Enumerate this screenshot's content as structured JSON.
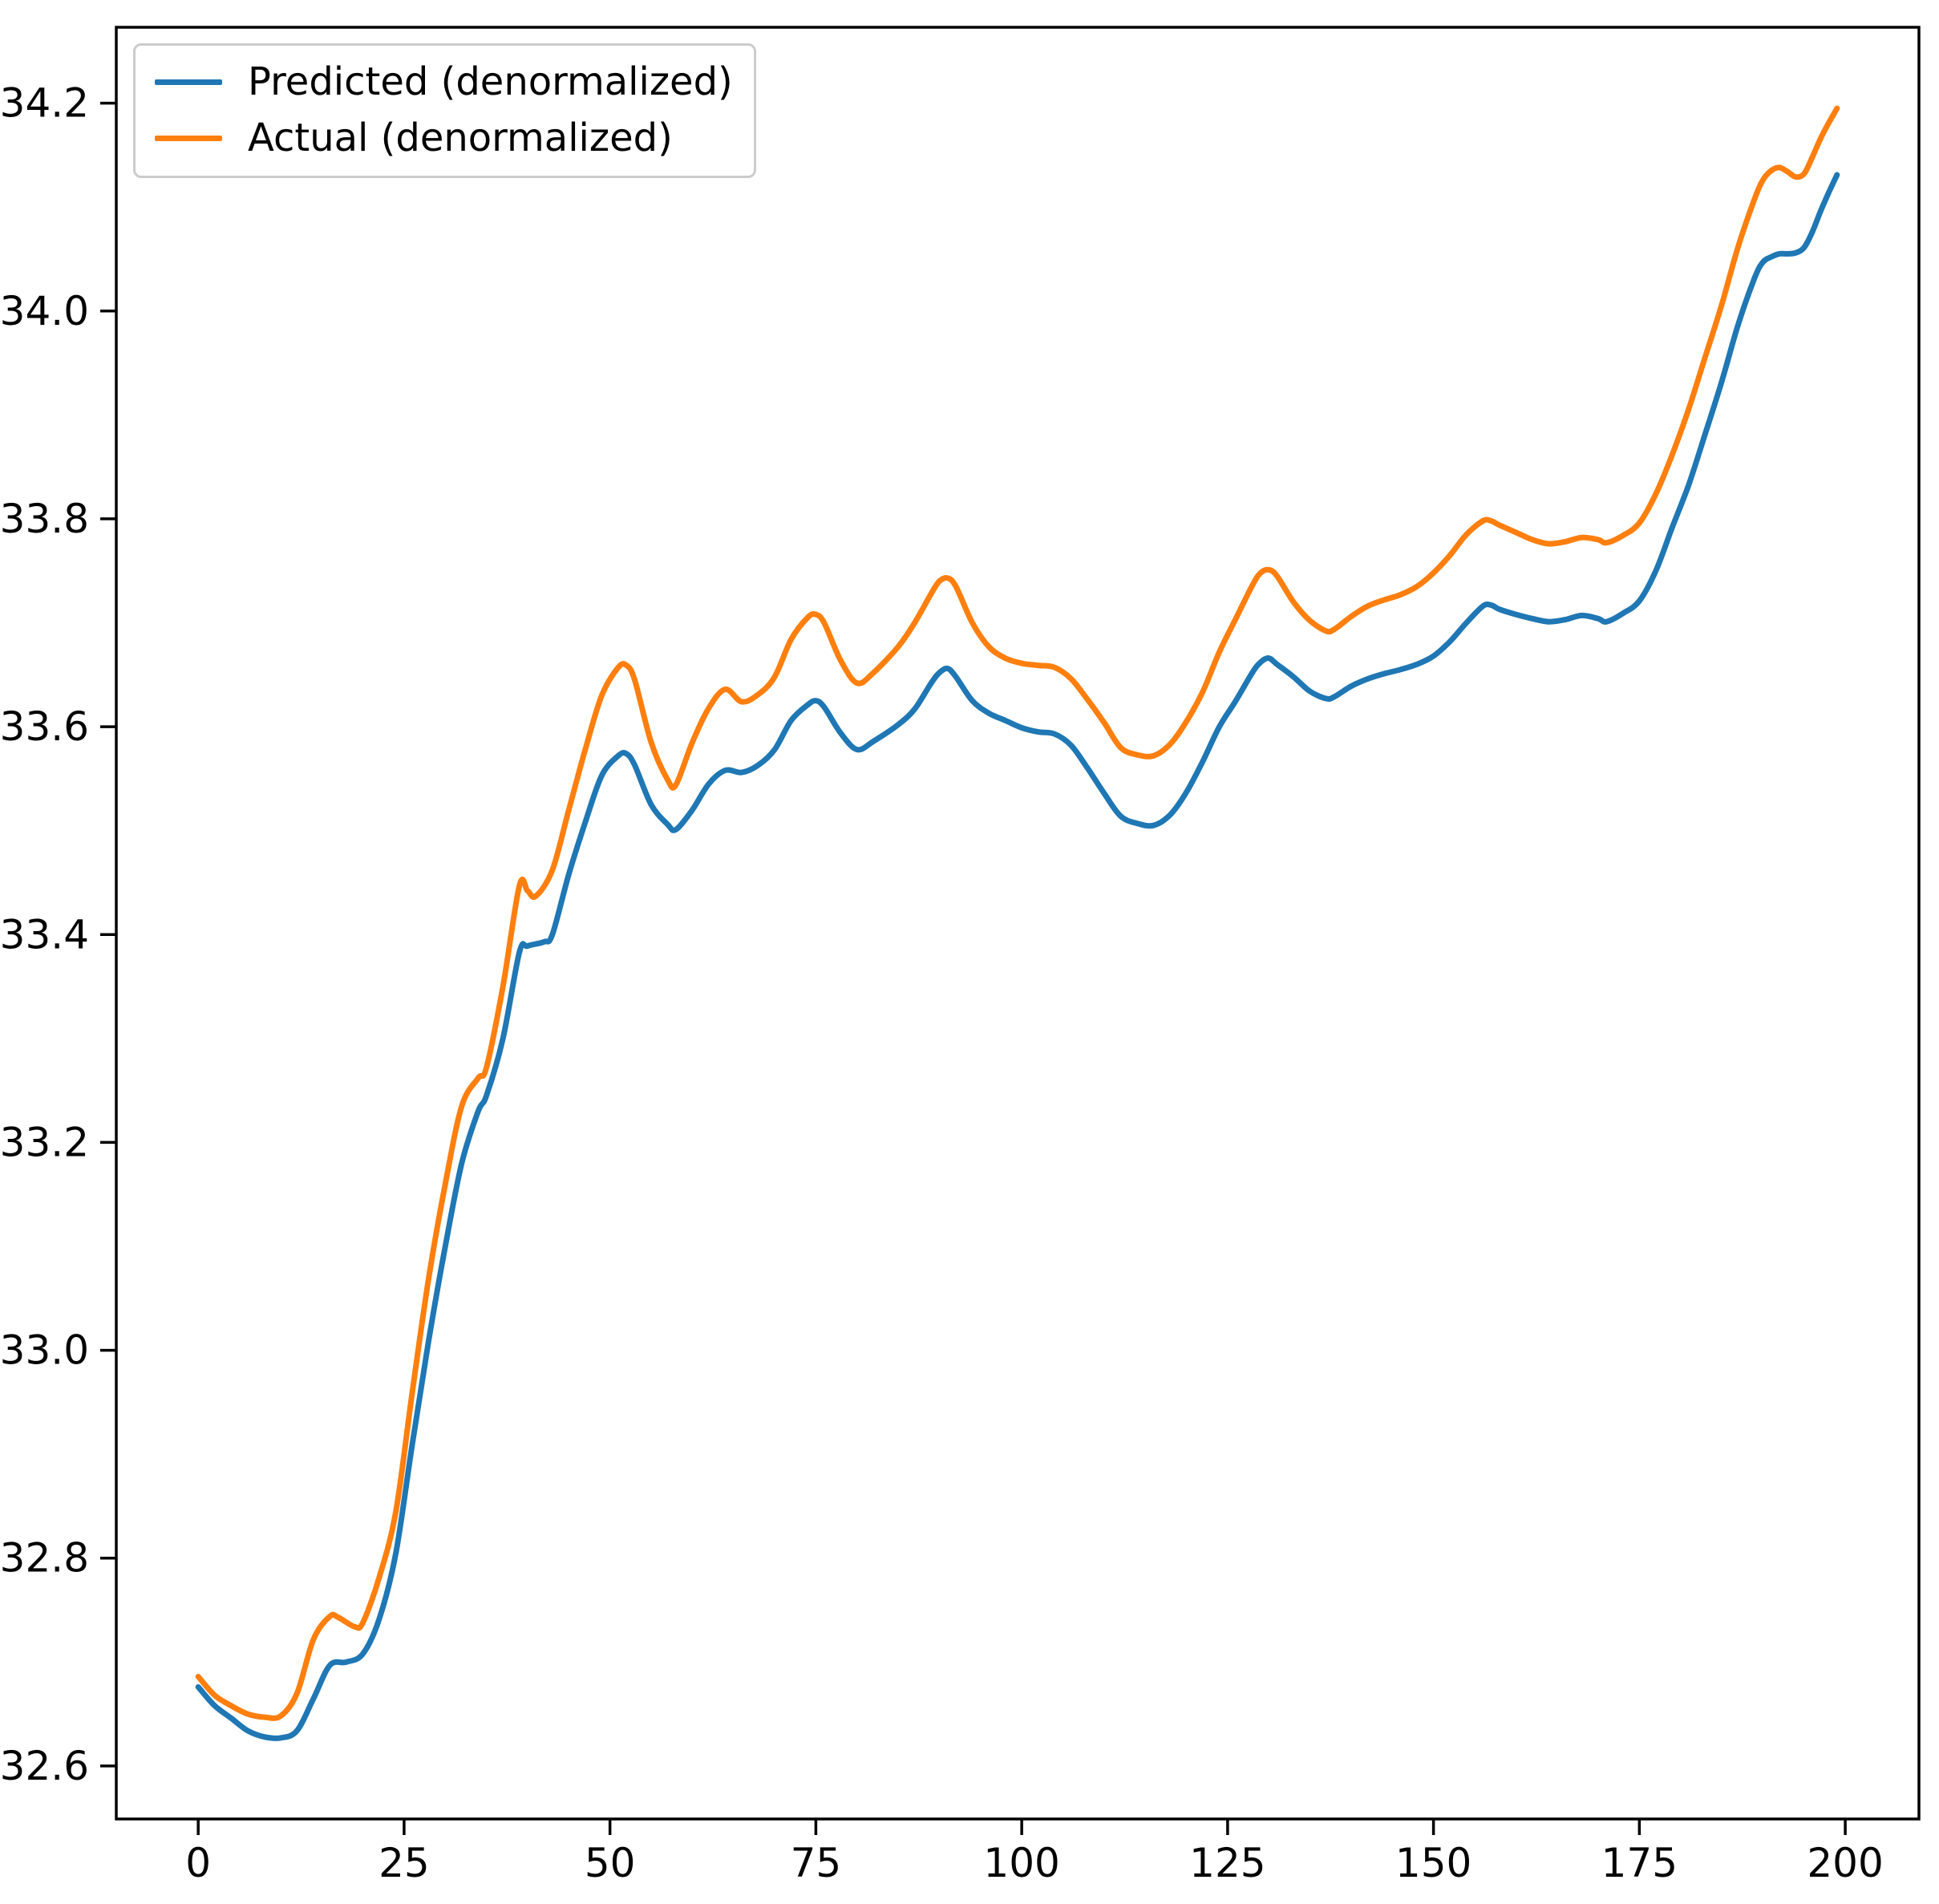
{
  "figure": {
    "background": "#ffffff",
    "axes_color": "#000000"
  },
  "chart_data": {
    "type": "line",
    "title": "",
    "xlabel": "",
    "ylabel": "",
    "grid": false,
    "xlim": [
      -9.95,
      208.95
    ],
    "ylim": [
      32.549,
      34.273
    ],
    "legend": {
      "position": "upper-left",
      "border_color": "#cccccc",
      "background": "#ffffff",
      "entries": [
        "Predicted (denormalized)",
        "Actual (denormalized)"
      ]
    },
    "xticks": {
      "values": [
        0,
        25,
        50,
        75,
        100,
        125,
        150,
        175,
        200
      ],
      "labels": [
        "0",
        "25",
        "50",
        "75",
        "100",
        "125",
        "150",
        "175",
        "200"
      ]
    },
    "yticks": {
      "values": [
        32.6,
        32.8,
        33.0,
        33.2,
        33.4,
        33.6,
        33.8,
        34.0,
        34.2
      ],
      "labels": [
        "32.6",
        "32.8",
        "33.0",
        "33.2",
        "33.4",
        "33.6",
        "33.8",
        "34.0",
        "34.2"
      ]
    },
    "series": [
      {
        "name": "Predicted (denormalized)",
        "id": "predicted",
        "color": "#1f77b4",
        "points": [
          [
            0,
            32.676
          ],
          [
            2,
            32.658
          ],
          [
            4,
            32.646
          ],
          [
            6,
            32.634
          ],
          [
            8,
            32.628
          ],
          [
            10,
            32.627
          ],
          [
            12,
            32.634
          ],
          [
            14,
            32.665
          ],
          [
            16,
            32.697
          ],
          [
            18,
            32.7
          ],
          [
            20,
            32.708
          ],
          [
            22,
            32.742
          ],
          [
            24,
            32.805
          ],
          [
            26,
            32.91
          ],
          [
            28,
            33.01
          ],
          [
            30,
            33.1
          ],
          [
            32,
            33.18
          ],
          [
            34,
            33.23
          ],
          [
            35,
            33.245
          ],
          [
            37,
            33.3
          ],
          [
            39,
            33.383
          ],
          [
            40,
            33.389
          ],
          [
            42,
            33.393
          ],
          [
            43,
            33.4
          ],
          [
            45,
            33.458
          ],
          [
            47,
            33.508
          ],
          [
            49,
            33.553
          ],
          [
            51,
            33.572
          ],
          [
            52,
            33.574
          ],
          [
            53,
            33.563
          ],
          [
            55,
            33.525
          ],
          [
            57,
            33.506
          ],
          [
            58,
            33.501
          ],
          [
            60,
            33.52
          ],
          [
            62,
            33.545
          ],
          [
            64,
            33.558
          ],
          [
            66,
            33.556
          ],
          [
            68,
            33.563
          ],
          [
            70,
            33.578
          ],
          [
            72,
            33.606
          ],
          [
            74,
            33.621
          ],
          [
            75,
            33.625
          ],
          [
            76,
            33.619
          ],
          [
            78,
            33.594
          ],
          [
            80,
            33.578
          ],
          [
            82,
            33.586
          ],
          [
            85,
            33.602
          ],
          [
            87,
            33.617
          ],
          [
            89,
            33.642
          ],
          [
            90,
            33.652
          ],
          [
            91,
            33.656
          ],
          [
            92,
            33.648
          ],
          [
            94,
            33.625
          ],
          [
            96,
            33.613
          ],
          [
            98,
            33.606
          ],
          [
            100,
            33.599
          ],
          [
            102,
            33.595
          ],
          [
            104,
            33.593
          ],
          [
            106,
            33.582
          ],
          [
            108,
            33.56
          ],
          [
            110,
            33.536
          ],
          [
            112,
            33.514
          ],
          [
            114,
            33.507
          ],
          [
            116,
            33.505
          ],
          [
            118,
            33.515
          ],
          [
            120,
            33.537
          ],
          [
            122,
            33.567
          ],
          [
            124,
            33.6
          ],
          [
            126,
            33.625
          ],
          [
            128,
            33.652
          ],
          [
            129,
            33.662
          ],
          [
            130,
            33.666
          ],
          [
            131,
            33.66
          ],
          [
            133,
            33.648
          ],
          [
            135,
            33.634
          ],
          [
            137,
            33.627
          ],
          [
            138,
            33.629
          ],
          [
            140,
            33.639
          ],
          [
            142,
            33.646
          ],
          [
            144,
            33.651
          ],
          [
            146,
            33.655
          ],
          [
            148,
            33.66
          ],
          [
            150,
            33.668
          ],
          [
            152,
            33.682
          ],
          [
            154,
            33.7
          ],
          [
            156,
            33.716
          ],
          [
            157,
            33.717
          ],
          [
            158,
            33.713
          ],
          [
            160,
            33.708
          ],
          [
            162,
            33.704
          ],
          [
            164,
            33.701
          ],
          [
            166,
            33.703
          ],
          [
            168,
            33.707
          ],
          [
            170,
            33.704
          ],
          [
            171,
            33.701
          ],
          [
            173,
            33.709
          ],
          [
            175,
            33.721
          ],
          [
            177,
            33.75
          ],
          [
            179,
            33.792
          ],
          [
            181,
            33.833
          ],
          [
            183,
            33.882
          ],
          [
            185,
            33.932
          ],
          [
            187,
            33.987
          ],
          [
            189,
            34.032
          ],
          [
            190,
            34.047
          ],
          [
            191,
            34.052
          ],
          [
            192,
            34.055
          ],
          [
            193,
            34.055
          ],
          [
            194,
            34.056
          ],
          [
            195,
            34.061
          ],
          [
            196,
            34.076
          ],
          [
            197,
            34.096
          ],
          [
            198,
            34.114
          ],
          [
            199,
            34.131
          ]
        ]
      },
      {
        "name": "Actual (denormalized)",
        "id": "actual",
        "color": "#ff7f0e",
        "points": [
          [
            0,
            32.686
          ],
          [
            2,
            32.668
          ],
          [
            4,
            32.658
          ],
          [
            6,
            32.65
          ],
          [
            8,
            32.647
          ],
          [
            10,
            32.648
          ],
          [
            12,
            32.67
          ],
          [
            14,
            32.722
          ],
          [
            16,
            32.744
          ],
          [
            17,
            32.743
          ],
          [
            19,
            32.734
          ],
          [
            20,
            32.738
          ],
          [
            22,
            32.782
          ],
          [
            24,
            32.845
          ],
          [
            26,
            32.96
          ],
          [
            28,
            33.07
          ],
          [
            30,
            33.16
          ],
          [
            32,
            33.235
          ],
          [
            34,
            33.262
          ],
          [
            35,
            33.272
          ],
          [
            37,
            33.35
          ],
          [
            39,
            33.447
          ],
          [
            40,
            33.442
          ],
          [
            41,
            33.437
          ],
          [
            43,
            33.462
          ],
          [
            45,
            33.52
          ],
          [
            47,
            33.578
          ],
          [
            49,
            33.63
          ],
          [
            51,
            33.657
          ],
          [
            52,
            33.659
          ],
          [
            53,
            33.645
          ],
          [
            55,
            33.585
          ],
          [
            57,
            33.549
          ],
          [
            58,
            33.544
          ],
          [
            60,
            33.585
          ],
          [
            62,
            33.618
          ],
          [
            64,
            33.636
          ],
          [
            66,
            33.624
          ],
          [
            68,
            33.631
          ],
          [
            70,
            33.648
          ],
          [
            72,
            33.684
          ],
          [
            74,
            33.705
          ],
          [
            75,
            33.708
          ],
          [
            76,
            33.7
          ],
          [
            78,
            33.664
          ],
          [
            80,
            33.642
          ],
          [
            82,
            33.652
          ],
          [
            85,
            33.677
          ],
          [
            87,
            33.7
          ],
          [
            89,
            33.728
          ],
          [
            90,
            33.74
          ],
          [
            91,
            33.743
          ],
          [
            92,
            33.735
          ],
          [
            94,
            33.7
          ],
          [
            96,
            33.677
          ],
          [
            98,
            33.666
          ],
          [
            100,
            33.661
          ],
          [
            102,
            33.659
          ],
          [
            104,
            33.657
          ],
          [
            106,
            33.646
          ],
          [
            108,
            33.626
          ],
          [
            110,
            33.604
          ],
          [
            112,
            33.58
          ],
          [
            114,
            33.573
          ],
          [
            116,
            33.572
          ],
          [
            118,
            33.583
          ],
          [
            120,
            33.605
          ],
          [
            122,
            33.634
          ],
          [
            124,
            33.672
          ],
          [
            126,
            33.704
          ],
          [
            128,
            33.736
          ],
          [
            129,
            33.748
          ],
          [
            130,
            33.751
          ],
          [
            131,
            33.745
          ],
          [
            133,
            33.72
          ],
          [
            135,
            33.702
          ],
          [
            137,
            33.692
          ],
          [
            138,
            33.694
          ],
          [
            140,
            33.706
          ],
          [
            142,
            33.716
          ],
          [
            144,
            33.722
          ],
          [
            146,
            33.727
          ],
          [
            148,
            33.735
          ],
          [
            150,
            33.748
          ],
          [
            152,
            33.765
          ],
          [
            154,
            33.785
          ],
          [
            156,
            33.798
          ],
          [
            157,
            33.798
          ],
          [
            158,
            33.794
          ],
          [
            160,
            33.787
          ],
          [
            162,
            33.78
          ],
          [
            164,
            33.776
          ],
          [
            166,
            33.778
          ],
          [
            168,
            33.782
          ],
          [
            170,
            33.78
          ],
          [
            171,
            33.777
          ],
          [
            173,
            33.784
          ],
          [
            175,
            33.796
          ],
          [
            177,
            33.824
          ],
          [
            179,
            33.862
          ],
          [
            181,
            33.906
          ],
          [
            183,
            33.956
          ],
          [
            185,
            34.006
          ],
          [
            187,
            34.062
          ],
          [
            189,
            34.108
          ],
          [
            190,
            34.126
          ],
          [
            191,
            34.135
          ],
          [
            192,
            34.138
          ],
          [
            193,
            34.134
          ],
          [
            194,
            34.129
          ],
          [
            195,
            34.132
          ],
          [
            196,
            34.148
          ],
          [
            197,
            34.166
          ],
          [
            198,
            34.181
          ],
          [
            199,
            34.195
          ]
        ]
      }
    ]
  }
}
